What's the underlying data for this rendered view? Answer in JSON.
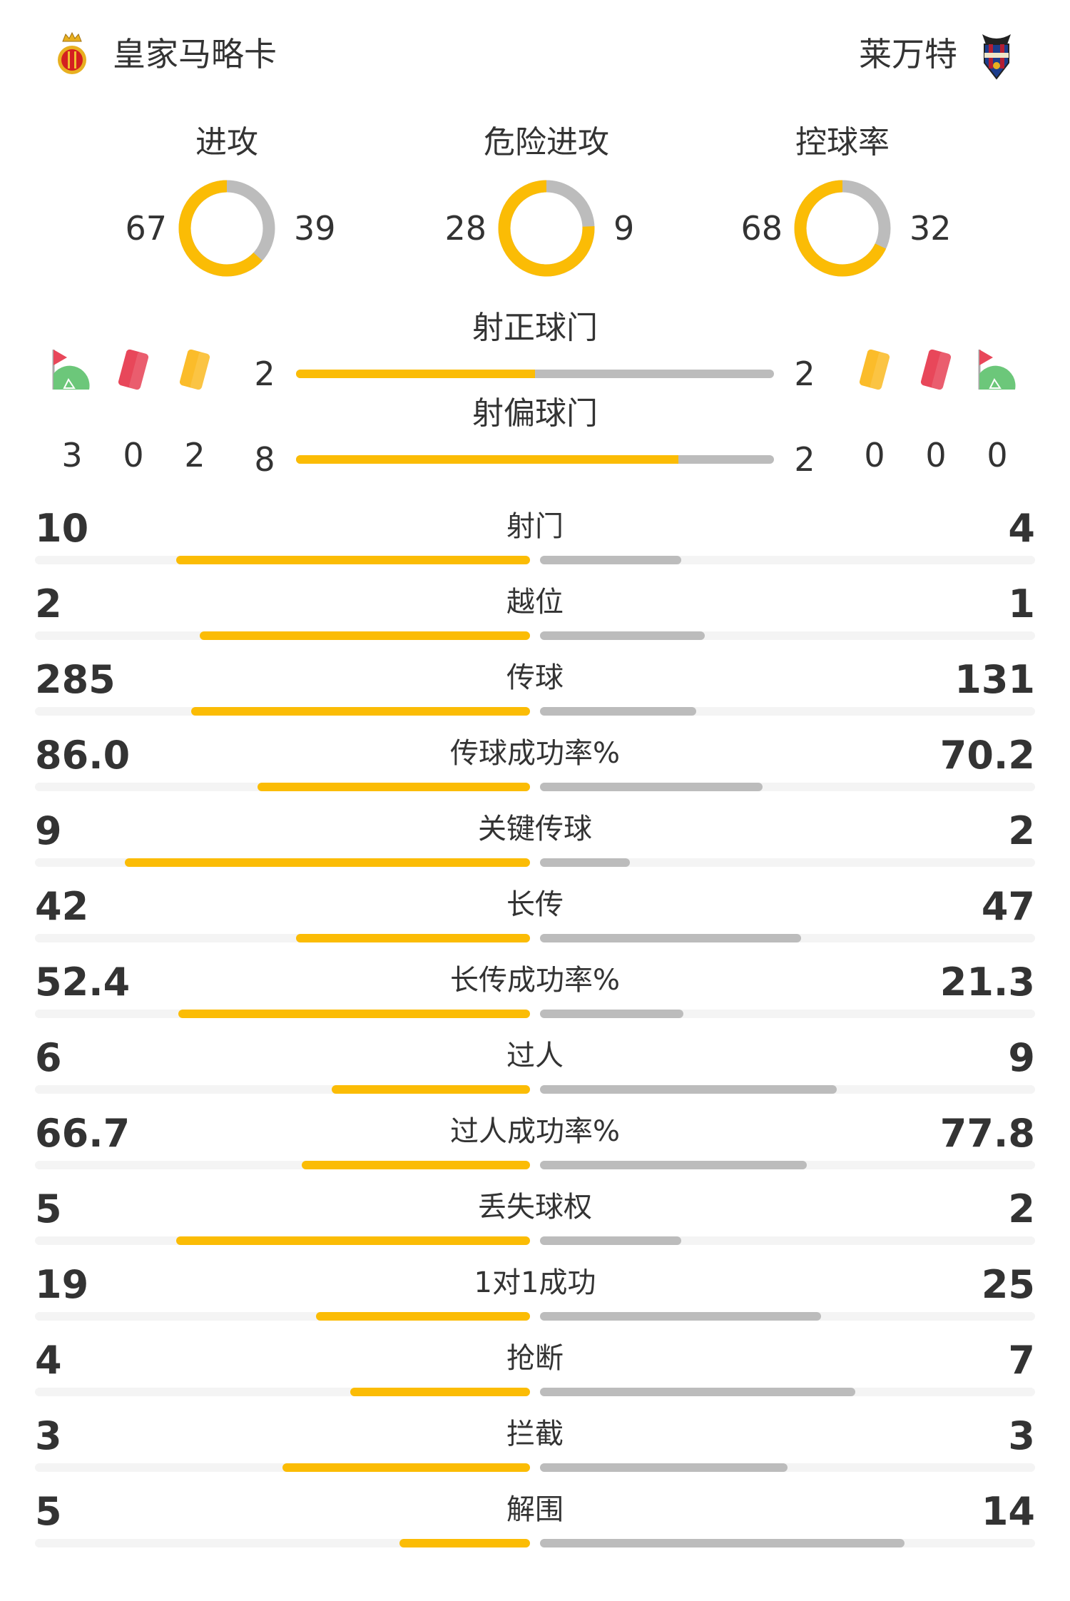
{
  "header": {
    "home_team": "皇家马略卡",
    "away_team": "莱万特",
    "home_logo": "mallorca-crest",
    "away_logo": "levante-crest"
  },
  "colors": {
    "home": "#fbbc05",
    "away": "#bcbcbc",
    "track": "#f4f4f4",
    "text": "#333333"
  },
  "donuts": [
    {
      "label": "进攻",
      "home": 67,
      "away": 39
    },
    {
      "label": "危险进攻",
      "home": 28,
      "away": 9
    },
    {
      "label": "控球率",
      "home": 68,
      "away": 32
    }
  ],
  "events": {
    "home": {
      "corners": 3,
      "red_cards": 0,
      "yellow_cards": 2
    },
    "away": {
      "yellow_cards": 0,
      "red_cards": 0,
      "corners": 0
    },
    "icons": [
      "corner-flag-icon",
      "red-card-icon",
      "yellow-card-icon"
    ]
  },
  "shots_bars": [
    {
      "label": "射正球门",
      "home": 2,
      "away": 2
    },
    {
      "label": "射偏球门",
      "home": 8,
      "away": 2
    }
  ],
  "stats": [
    {
      "label": "射门",
      "home": "10",
      "away": "4"
    },
    {
      "label": "越位",
      "home": "2",
      "away": "1"
    },
    {
      "label": "传球",
      "home": "285",
      "away": "131"
    },
    {
      "label": "传球成功率%",
      "home": "86.0",
      "away": "70.2"
    },
    {
      "label": "关键传球",
      "home": "9",
      "away": "2"
    },
    {
      "label": "长传",
      "home": "42",
      "away": "47"
    },
    {
      "label": "长传成功率%",
      "home": "52.4",
      "away": "21.3"
    },
    {
      "label": "过人",
      "home": "6",
      "away": "9"
    },
    {
      "label": "过人成功率%",
      "home": "66.7",
      "away": "77.8"
    },
    {
      "label": "丢失球权",
      "home": "5",
      "away": "2"
    },
    {
      "label": "1对1成功",
      "home": "19",
      "away": "25"
    },
    {
      "label": "抢断",
      "home": "4",
      "away": "7"
    },
    {
      "label": "拦截",
      "home": "3",
      "away": "3"
    },
    {
      "label": "解围",
      "home": "5",
      "away": "14"
    }
  ]
}
